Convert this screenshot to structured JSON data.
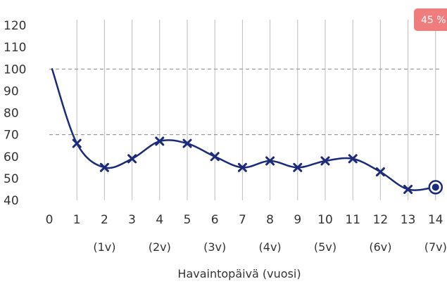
{
  "chart_data": {
    "type": "line",
    "x": [
      0,
      1,
      2,
      3,
      4,
      5,
      6,
      7,
      8,
      9,
      10,
      11,
      12,
      13,
      14
    ],
    "series": [
      {
        "values": [
          100,
          66,
          55,
          59,
          67,
          66,
          60,
          55,
          58,
          55,
          58,
          59,
          53,
          45,
          46
        ]
      }
    ],
    "x_sublabels": [
      "",
      "",
      "(1v)",
      "",
      "(2v)",
      "",
      "(3v)",
      "",
      "(4v)",
      "",
      "(5v)",
      "",
      "(6v)",
      "",
      "(7v)"
    ],
    "xlabel": "Havaintopäivä (vuosi)",
    "ylabel": "",
    "title": "",
    "xlim": [
      0,
      14
    ],
    "ylim": [
      40,
      120
    ],
    "yticks": [
      40,
      50,
      60,
      70,
      80,
      90,
      100,
      110,
      120
    ],
    "reference_lines": [
      100,
      70
    ],
    "vertical_grid": true,
    "badge": "45 %",
    "colors": {
      "line": "#1b2a7a",
      "grid": "#bdbdbd",
      "ref": "#888888",
      "badge": "#f07d7d"
    }
  }
}
